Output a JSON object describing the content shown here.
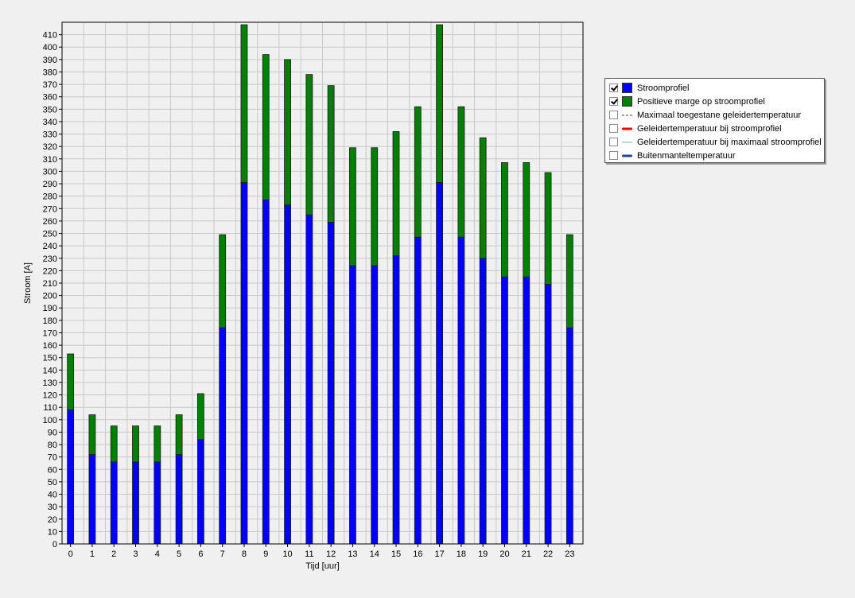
{
  "chart_data": {
    "type": "bar",
    "stacked": true,
    "title": "",
    "xlabel": "Tijd [uur]",
    "ylabel": "Stroom [A]",
    "ylim": [
      0,
      420
    ],
    "ytick_step": 10,
    "grid": true,
    "legend_position": "right",
    "categories": [
      "0",
      "1",
      "2",
      "3",
      "4",
      "5",
      "6",
      "7",
      "8",
      "9",
      "10",
      "11",
      "12",
      "13",
      "14",
      "15",
      "16",
      "17",
      "18",
      "19",
      "20",
      "21",
      "22",
      "23"
    ],
    "series": [
      {
        "name": "Stroomprofiel",
        "color": "#0000ff",
        "values": [
          108,
          72,
          66,
          66,
          66,
          72,
          84,
          174,
          291,
          277,
          273,
          265,
          259,
          224,
          224,
          232,
          247,
          291,
          247,
          230,
          215,
          215,
          209,
          174
        ]
      },
      {
        "name": "Positieve marge op stroomprofiel",
        "color": "#008000",
        "values": [
          45,
          32,
          29,
          29,
          29,
          32,
          37,
          75,
          127,
          117,
          117,
          113,
          110,
          95,
          95,
          100,
          105,
          127,
          105,
          97,
          92,
          92,
          90,
          75
        ]
      }
    ]
  },
  "legend": {
    "items": [
      {
        "label": "Stroomprofiel",
        "checked": true,
        "swatch": "box",
        "color": "#0000ff"
      },
      {
        "label": "Positieve marge op stroomprofiel",
        "checked": true,
        "swatch": "box",
        "color": "#008000"
      },
      {
        "label": "Maximaal toegestane geleidertemperatuur",
        "checked": false,
        "swatch": "dashed",
        "color": "#444444"
      },
      {
        "label": "Geleidertemperatuur bij stroomprofiel",
        "checked": false,
        "swatch": "thick-red",
        "color": "#ff0000"
      },
      {
        "label": "Geleidertemperatuur bij maximaal stroomprofiel",
        "checked": false,
        "swatch": "thin-teal",
        "color": "#6fb5a0"
      },
      {
        "label": "Buitenmanteltemperatuur",
        "checked": false,
        "swatch": "thick-navy",
        "color": "#1a4a8a"
      }
    ]
  }
}
